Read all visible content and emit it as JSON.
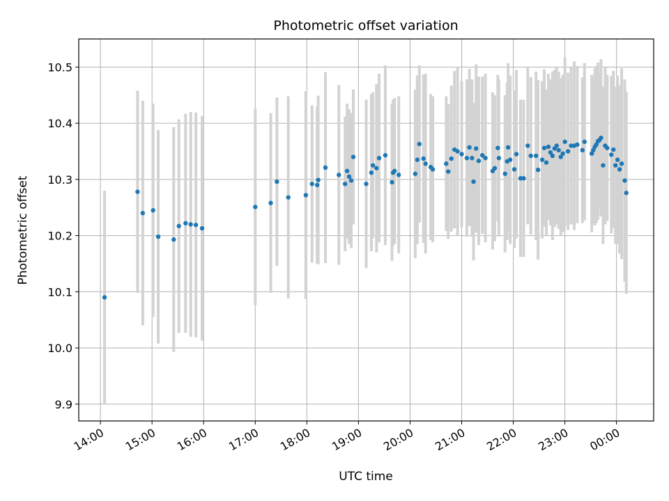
{
  "chart_data": {
    "type": "scatter",
    "title": "Photometric offset variation",
    "xlabel": "UTC time",
    "ylabel": "Photometric offset",
    "xlim": [
      13.58,
      24.72
    ],
    "ylim": [
      9.87,
      10.55
    ],
    "grid": true,
    "x_ticks": [
      {
        "value": 14,
        "label": "14:00"
      },
      {
        "value": 15,
        "label": "15:00"
      },
      {
        "value": 16,
        "label": "16:00"
      },
      {
        "value": 17,
        "label": "17:00"
      },
      {
        "value": 18,
        "label": "18:00"
      },
      {
        "value": 19,
        "label": "19:00"
      },
      {
        "value": 20,
        "label": "20:00"
      },
      {
        "value": 21,
        "label": "21:00"
      },
      {
        "value": 22,
        "label": "22:00"
      },
      {
        "value": 23,
        "label": "23:00"
      },
      {
        "value": 24,
        "label": "00:00"
      }
    ],
    "y_ticks": [
      {
        "value": 9.9,
        "label": "9.9"
      },
      {
        "value": 10.0,
        "label": "10.0"
      },
      {
        "value": 10.1,
        "label": "10.1"
      },
      {
        "value": 10.2,
        "label": "10.2"
      },
      {
        "value": 10.3,
        "label": "10.3"
      },
      {
        "value": 10.4,
        "label": "10.4"
      },
      {
        "value": 10.5,
        "label": "10.5"
      }
    ],
    "colors": {
      "points": "#1f77b4",
      "errorbars": "#d3d3d3",
      "grid": "#b0b0b0"
    },
    "series": [
      {
        "name": "offset",
        "x": [
          14.08,
          14.72,
          14.82,
          15.02,
          15.12,
          15.42,
          15.52,
          15.65,
          15.75,
          15.85,
          15.97,
          17.0,
          17.3,
          17.42,
          17.64,
          17.98,
          18.1,
          18.2,
          18.22,
          18.36,
          18.62,
          18.74,
          18.78,
          18.82,
          18.86,
          18.9,
          19.15,
          19.25,
          19.28,
          19.35,
          19.4,
          19.52,
          19.65,
          19.67,
          19.7,
          19.78,
          20.1,
          20.14,
          20.18,
          20.26,
          20.3,
          20.4,
          20.44,
          20.7,
          20.74,
          20.8,
          20.86,
          20.92,
          21.0,
          21.1,
          21.15,
          21.2,
          21.23,
          21.28,
          21.33,
          21.4,
          21.46,
          21.6,
          21.64,
          21.7,
          21.72,
          21.84,
          21.88,
          21.9,
          21.94,
          22.02,
          22.06,
          22.14,
          22.2,
          22.28,
          22.34,
          22.44,
          22.48,
          22.56,
          22.6,
          22.64,
          22.68,
          22.72,
          22.76,
          22.8,
          22.84,
          22.88,
          22.92,
          22.96,
          23.0,
          23.06,
          23.12,
          23.18,
          23.24,
          23.34,
          23.38,
          23.52,
          23.55,
          23.58,
          23.61,
          23.64,
          23.67,
          23.7,
          23.74,
          23.78,
          23.82,
          23.9,
          23.94,
          23.98,
          24.02,
          24.06,
          24.1,
          24.16,
          24.19
        ],
        "y": [
          10.09,
          10.278,
          10.24,
          10.245,
          10.198,
          10.193,
          10.217,
          10.222,
          10.22,
          10.219,
          10.213,
          10.251,
          10.258,
          10.296,
          10.268,
          10.272,
          10.292,
          10.29,
          10.299,
          10.321,
          10.308,
          10.292,
          10.315,
          10.305,
          10.298,
          10.34,
          10.292,
          10.312,
          10.325,
          10.32,
          10.338,
          10.343,
          10.295,
          10.312,
          10.315,
          10.308,
          10.31,
          10.335,
          10.363,
          10.337,
          10.328,
          10.322,
          10.318,
          10.328,
          10.314,
          10.337,
          10.353,
          10.35,
          10.345,
          10.338,
          10.357,
          10.338,
          10.296,
          10.355,
          10.333,
          10.343,
          10.338,
          10.315,
          10.32,
          10.356,
          10.338,
          10.31,
          10.332,
          10.357,
          10.335,
          10.318,
          10.345,
          10.302,
          10.302,
          10.36,
          10.342,
          10.342,
          10.317,
          10.335,
          10.356,
          10.33,
          10.358,
          10.348,
          10.342,
          10.355,
          10.36,
          10.352,
          10.34,
          10.346,
          10.367,
          10.35,
          10.36,
          10.36,
          10.362,
          10.352,
          10.367,
          10.346,
          10.352,
          10.358,
          10.362,
          10.368,
          10.37,
          10.374,
          10.325,
          10.36,
          10.356,
          10.344,
          10.353,
          10.325,
          10.335,
          10.318,
          10.328,
          10.298,
          10.276
        ],
        "err": [
          0.19,
          0.18,
          0.2,
          0.19,
          0.19,
          0.2,
          0.19,
          0.195,
          0.2,
          0.2,
          0.2,
          0.175,
          0.16,
          0.15,
          0.18,
          0.185,
          0.14,
          0.14,
          0.15,
          0.17,
          0.16,
          0.12,
          0.12,
          0.12,
          0.12,
          0.12,
          0.15,
          0.14,
          0.13,
          0.15,
          0.15,
          0.16,
          0.14,
          0.13,
          0.13,
          0.14,
          0.15,
          0.15,
          0.14,
          0.15,
          0.16,
          0.13,
          0.13,
          0.12,
          0.12,
          0.13,
          0.14,
          0.15,
          0.13,
          0.14,
          0.14,
          0.14,
          0.14,
          0.15,
          0.15,
          0.14,
          0.15,
          0.14,
          0.13,
          0.13,
          0.14,
          0.14,
          0.14,
          0.15,
          0.15,
          0.14,
          0.15,
          0.14,
          0.14,
          0.14,
          0.14,
          0.15,
          0.16,
          0.14,
          0.14,
          0.13,
          0.13,
          0.13,
          0.15,
          0.14,
          0.14,
          0.14,
          0.14,
          0.14,
          0.15,
          0.14,
          0.14,
          0.15,
          0.14,
          0.13,
          0.14,
          0.14,
          0.13,
          0.14,
          0.14,
          0.14,
          0.12,
          0.14,
          0.14,
          0.14,
          0.13,
          0.14,
          0.14,
          0.14,
          0.15,
          0.15,
          0.17,
          0.18,
          0.18
        ]
      }
    ]
  }
}
